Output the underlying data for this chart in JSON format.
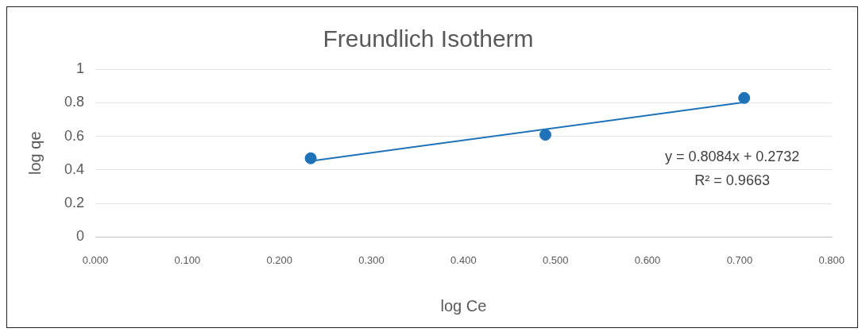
{
  "chart_data": {
    "type": "scatter",
    "title": "Freundlich Isotherm",
    "xlabel": "log Ce",
    "ylabel": "log qe",
    "series": [
      {
        "type": "scatter",
        "color": "#1f72b8",
        "x": [
          0.234,
          0.489,
          0.705
        ],
        "values": [
          0.469,
          0.609,
          0.828
        ],
        "marker": "circle"
      },
      {
        "type": "line",
        "color": "#1f72b8",
        "x": [
          0.234,
          0.705
        ],
        "values": [
          0.453,
          0.802
        ],
        "marker": "none",
        "line_style": "solid"
      }
    ],
    "xlim": [
      0,
      0.8
    ],
    "xticks": [
      {
        "value": 0,
        "label": "0.000"
      },
      {
        "value": 0.1,
        "label": "0.100"
      },
      {
        "value": 0.2,
        "label": "0.200"
      },
      {
        "value": 0.3,
        "label": "0.300"
      },
      {
        "value": 0.4,
        "label": "0.400"
      },
      {
        "value": 0.5,
        "label": "0.500"
      },
      {
        "value": 0.6,
        "label": "0.600"
      },
      {
        "value": 0.7,
        "label": "0.700"
      },
      {
        "value": 0.8,
        "label": "0.800"
      }
    ],
    "ylim": [
      0,
      1
    ],
    "yticks": [
      0,
      0.2,
      0.4,
      0.6,
      0.8,
      1
    ],
    "grid": "y",
    "legend": false,
    "annotations": [
      "y = 0.8084x + 0.2732",
      "R² = 0.9663"
    ]
  }
}
